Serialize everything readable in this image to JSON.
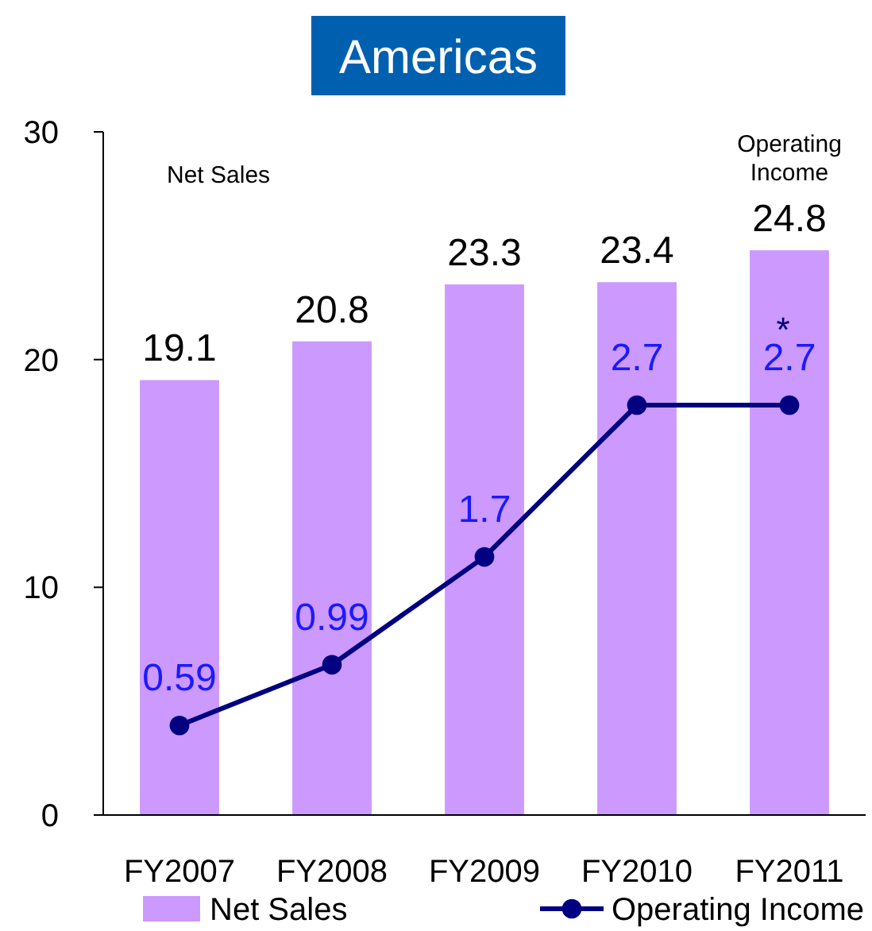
{
  "chart_data": {
    "type": "bar",
    "title": "Americas",
    "categories": [
      "FY2007",
      "FY2008",
      "FY2009",
      "FY2010",
      "FY2011"
    ],
    "series": [
      {
        "name": "Net Sales",
        "color": "#cc99ff",
        "values": [
          19.1,
          20.8,
          23.3,
          23.4,
          24.8
        ]
      },
      {
        "name": "Operating Income",
        "type": "line",
        "axis": "y2",
        "color": "#000080",
        "values": [
          0.59,
          0.99,
          1.7,
          2.7,
          2.7
        ]
      }
    ],
    "ylim": [
      0,
      30
    ],
    "yticks": [
      0,
      10,
      20,
      30
    ],
    "y2lim": [
      0,
      4.5
    ],
    "data_labels": true,
    "grid": false,
    "legend": "bottom",
    "marker": "circle",
    "line_style": "solid",
    "annotations": [
      "Net Sales",
      "Operating Income",
      "*"
    ]
  }
}
